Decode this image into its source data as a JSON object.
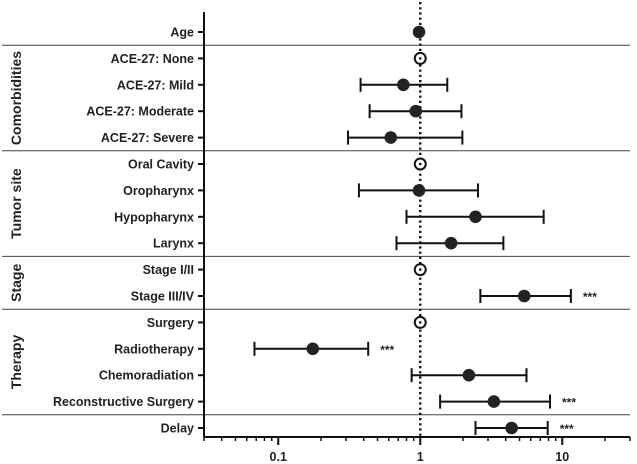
{
  "chart_data": {
    "type": "forest",
    "x_scale": "log",
    "xlim": [
      0.03,
      30
    ],
    "x_ticks": [
      0.1,
      1,
      10
    ],
    "x_tick_labels": [
      "0.1",
      "1",
      "10"
    ],
    "reference_line": 1,
    "grid": false,
    "rows": [
      {
        "label": "Age",
        "estimate": 0.98,
        "low": null,
        "high": null,
        "reference": false,
        "sig": ""
      },
      {
        "label": "ACE-27: None",
        "estimate": 1.0,
        "low": null,
        "high": null,
        "reference": true,
        "sig": ""
      },
      {
        "label": "ACE-27: Mild",
        "estimate": 0.76,
        "low": 0.38,
        "high": 1.55,
        "reference": false,
        "sig": ""
      },
      {
        "label": "ACE-27: Moderate",
        "estimate": 0.93,
        "low": 0.44,
        "high": 1.95,
        "reference": false,
        "sig": ""
      },
      {
        "label": "ACE-27: Severe",
        "estimate": 0.62,
        "low": 0.31,
        "high": 1.98,
        "reference": false,
        "sig": ""
      },
      {
        "label": "Oral Cavity",
        "estimate": 1.0,
        "low": null,
        "high": null,
        "reference": true,
        "sig": ""
      },
      {
        "label": "Oropharynx",
        "estimate": 0.98,
        "low": 0.37,
        "high": 2.55,
        "reference": false,
        "sig": ""
      },
      {
        "label": "Hypopharynx",
        "estimate": 2.45,
        "low": 0.8,
        "high": 7.4,
        "reference": false,
        "sig": ""
      },
      {
        "label": "Larynx",
        "estimate": 1.65,
        "low": 0.68,
        "high": 3.85,
        "reference": false,
        "sig": ""
      },
      {
        "label": "Stage I/II",
        "estimate": 1.0,
        "low": null,
        "high": null,
        "reference": true,
        "sig": ""
      },
      {
        "label": "Stage III/IV",
        "estimate": 5.4,
        "low": 2.65,
        "high": 11.5,
        "reference": false,
        "sig": "***"
      },
      {
        "label": "Surgery",
        "estimate": 1.0,
        "low": null,
        "high": null,
        "reference": true,
        "sig": ""
      },
      {
        "label": "Radiotherapy",
        "estimate": 0.175,
        "low": 0.068,
        "high": 0.43,
        "reference": false,
        "sig": "***"
      },
      {
        "label": "Chemoradiation",
        "estimate": 2.2,
        "low": 0.87,
        "high": 5.6,
        "reference": false,
        "sig": ""
      },
      {
        "label": "Reconstructive Surgery",
        "estimate": 3.3,
        "low": 1.38,
        "high": 8.2,
        "reference": false,
        "sig": "***"
      },
      {
        "label": "Delay",
        "estimate": 4.4,
        "low": 2.45,
        "high": 7.9,
        "reference": false,
        "sig": "***"
      }
    ],
    "groups": [
      {
        "name": "Comorbidities",
        "first_row": 1,
        "last_row": 4
      },
      {
        "name": "Tumor site",
        "first_row": 5,
        "last_row": 8
      },
      {
        "name": "Stage",
        "first_row": 9,
        "last_row": 10
      },
      {
        "name": "Therapy",
        "first_row": 11,
        "last_row": 14
      }
    ]
  }
}
